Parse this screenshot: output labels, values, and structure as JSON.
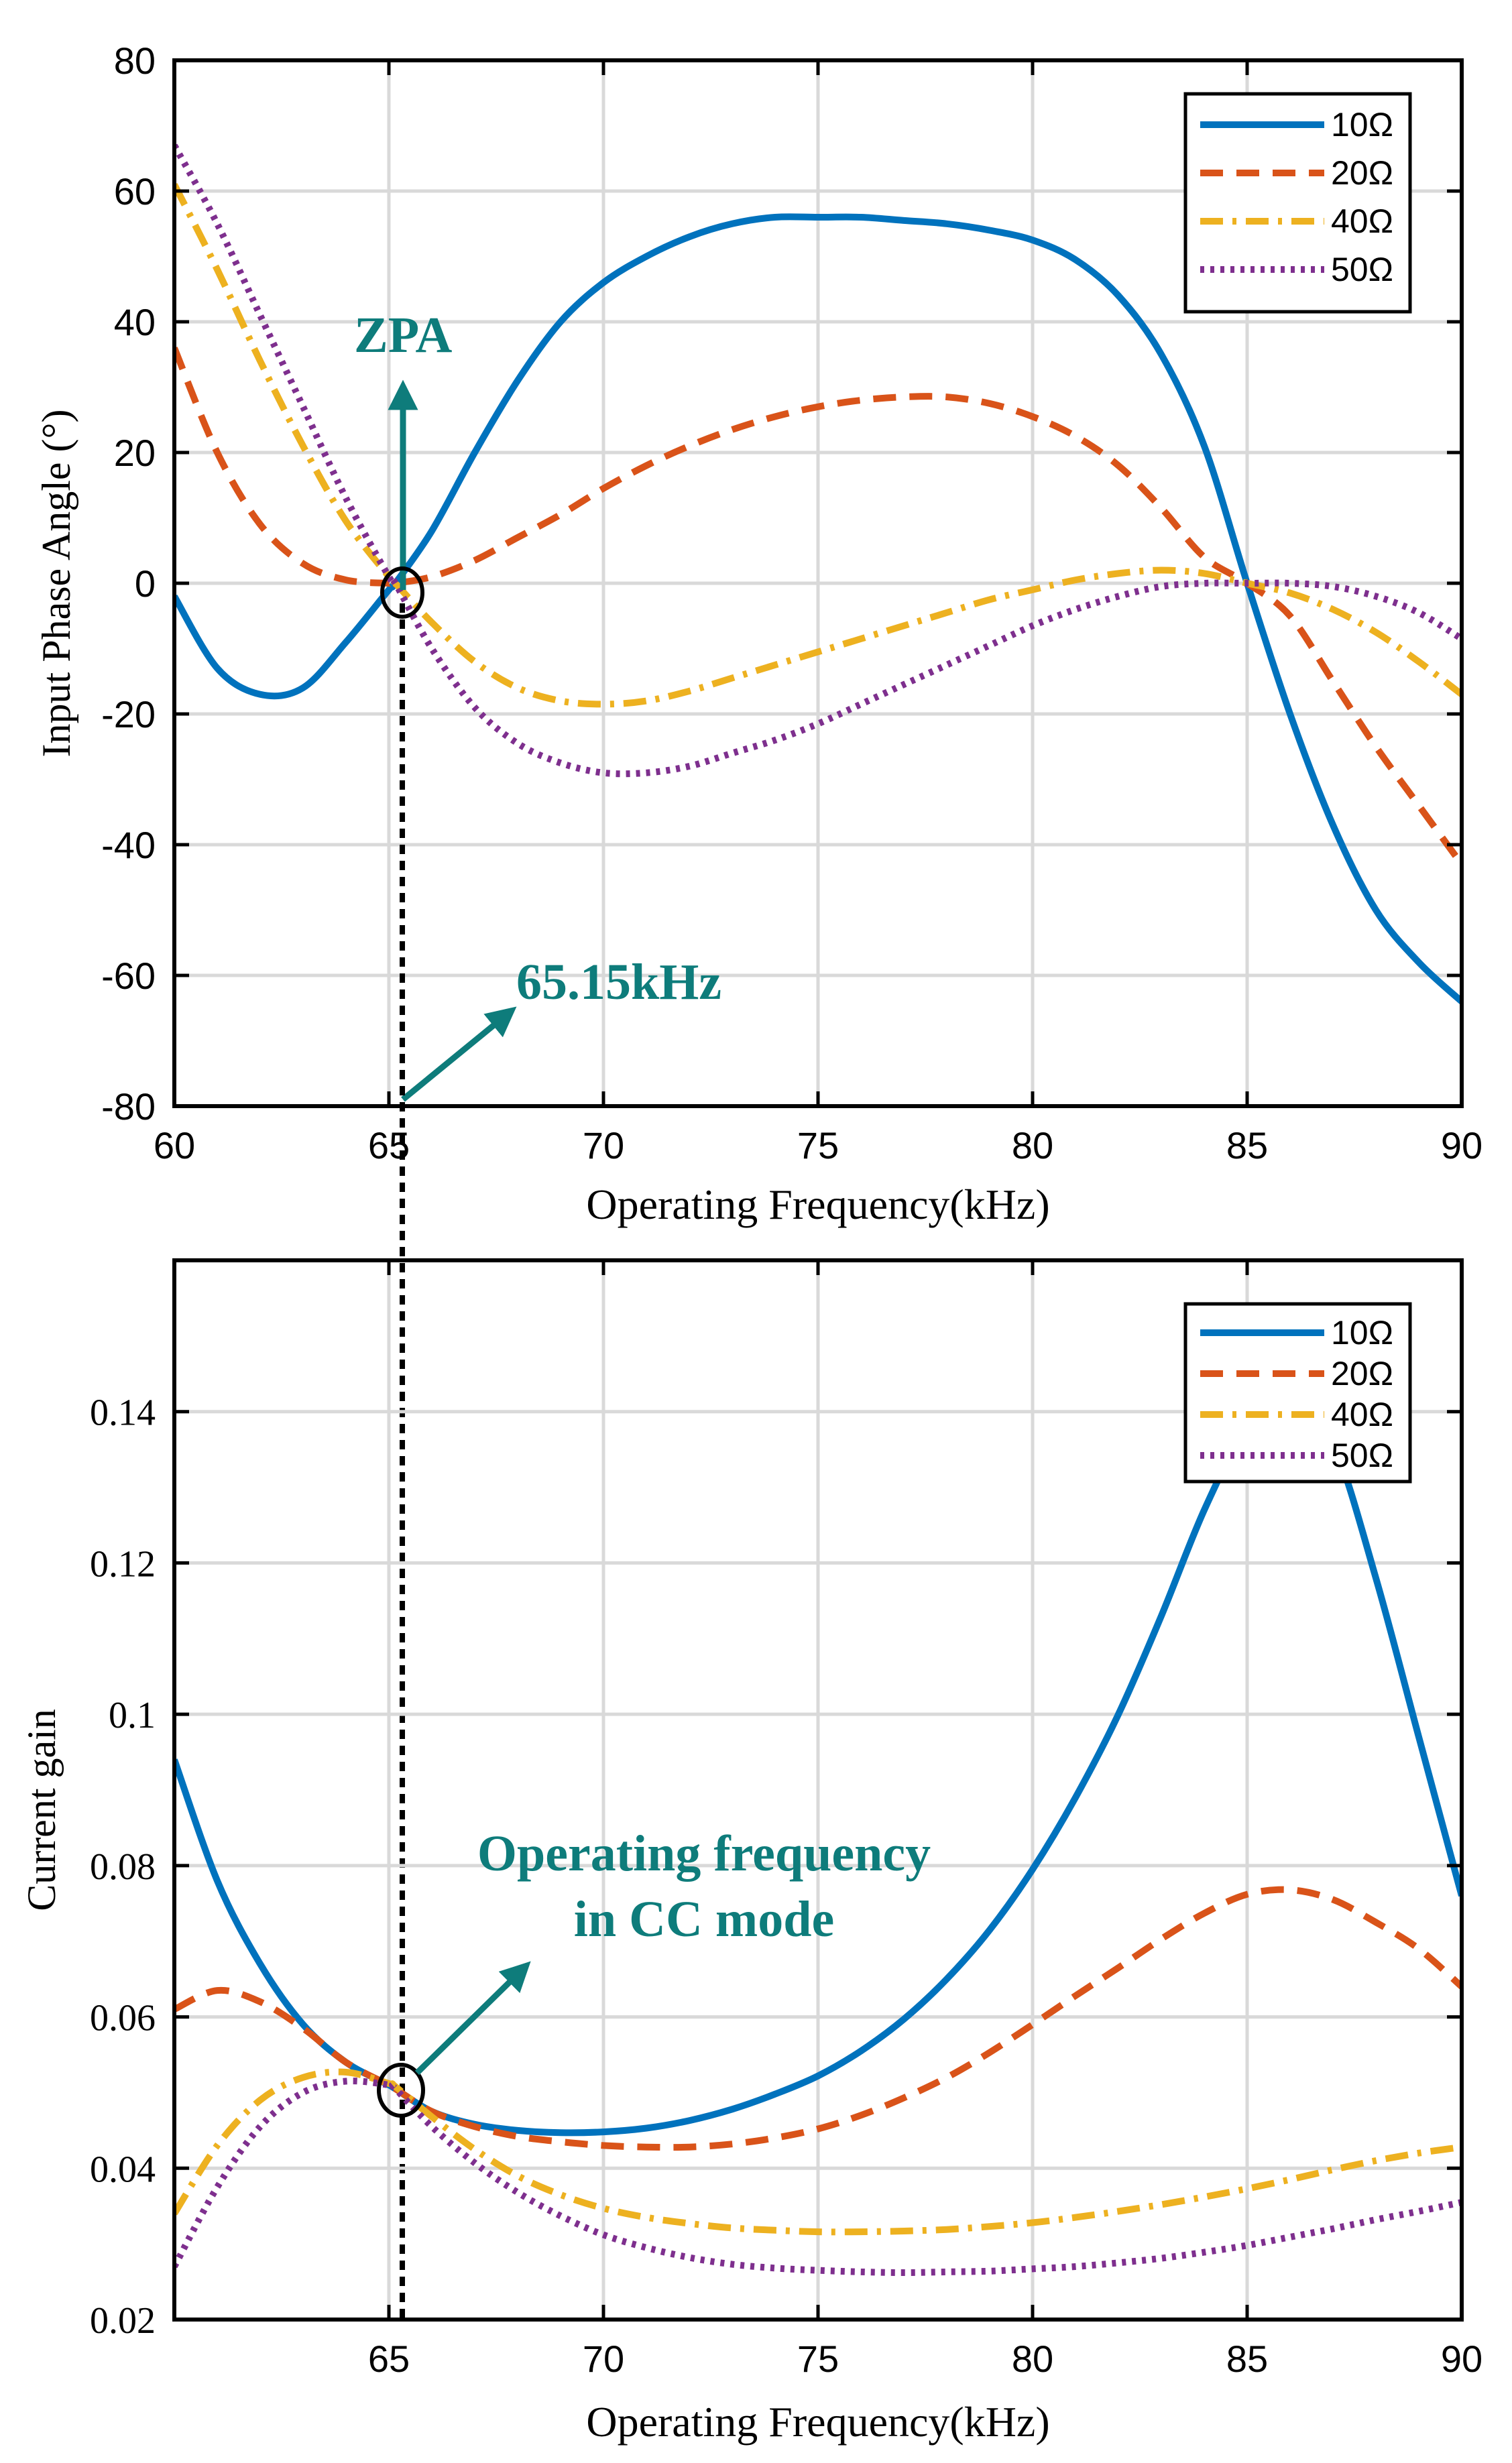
{
  "colors": {
    "series": [
      "#0072BD",
      "#D95319",
      "#EDB120",
      "#7E2F8E"
    ],
    "annotation": "#0E7C7B",
    "grid": "#d9d9d9",
    "axis": "#000000"
  },
  "chart_data": [
    {
      "type": "line",
      "xlabel": "Operating Frequency(kHz)",
      "ylabel": "Input Phase Angle (°)",
      "xlim": [
        60,
        90
      ],
      "ylim": [
        -80,
        80
      ],
      "xticks": [
        60,
        65,
        70,
        75,
        80,
        85,
        90
      ],
      "yticks": [
        -80,
        -60,
        -40,
        -20,
        0,
        20,
        40,
        60,
        80
      ],
      "grid": true,
      "legend_position": "top-right",
      "series": [
        {
          "name": "10Ω",
          "style": "solid",
          "x": [
            60,
            61,
            62,
            63,
            64,
            65,
            65.15,
            66,
            67,
            68,
            69,
            70,
            71,
            72,
            73,
            74,
            75,
            76,
            77,
            78,
            79,
            80,
            81,
            82,
            83,
            84,
            85,
            86,
            87,
            88,
            89,
            90
          ],
          "y": [
            -2,
            -13,
            -17,
            -16,
            -9,
            -1,
            0,
            8,
            20,
            31,
            40,
            46,
            50,
            53,
            55,
            56,
            56,
            56,
            55.5,
            55,
            54,
            52.5,
            49.5,
            44,
            35,
            21,
            0,
            -20,
            -37,
            -50,
            -58,
            -64
          ]
        },
        {
          "name": "20Ω",
          "style": "dashed",
          "x": [
            60,
            61,
            62,
            63,
            64,
            65,
            65.15,
            66,
            67,
            68,
            69,
            70,
            71,
            72,
            73,
            74,
            75,
            76,
            77,
            78,
            79,
            80,
            81,
            82,
            83,
            84,
            85,
            86,
            87,
            88,
            89,
            90
          ],
          "y": [
            36,
            20,
            9,
            3,
            0.5,
            0,
            0,
            1,
            3.5,
            7,
            10.5,
            14.5,
            18,
            21,
            23.5,
            25.5,
            27,
            28,
            28.5,
            28.5,
            27.5,
            25.5,
            22.5,
            18,
            11.5,
            4,
            0,
            -5,
            -15,
            -25,
            -34,
            -43
          ]
        },
        {
          "name": "40Ω",
          "style": "dashdot",
          "x": [
            60,
            61,
            62,
            63,
            64,
            65,
            65.15,
            66,
            67,
            68,
            69,
            70,
            71,
            72,
            73,
            74,
            75,
            76,
            77,
            78,
            79,
            80,
            81,
            82,
            83,
            84,
            85,
            86,
            87,
            88,
            89,
            90
          ],
          "y": [
            61,
            48,
            34,
            21,
            9.5,
            1,
            0,
            -6,
            -12,
            -16,
            -18,
            -18.5,
            -18,
            -16.5,
            -14.5,
            -12.5,
            -10.5,
            -8.5,
            -6.5,
            -4.5,
            -2.5,
            -1,
            0.5,
            1.5,
            2,
            1.5,
            0,
            -1.5,
            -4,
            -7.5,
            -12,
            -17
          ]
        },
        {
          "name": "50Ω",
          "style": "dotted",
          "x": [
            60,
            61,
            62,
            63,
            64,
            65,
            65.15,
            66,
            67,
            68,
            69,
            70,
            71,
            72,
            73,
            74,
            75,
            76,
            77,
            78,
            79,
            80,
            81,
            82,
            83,
            84,
            85,
            86,
            87,
            88,
            89,
            90
          ],
          "y": [
            67,
            55,
            41,
            27,
            13,
            1,
            0,
            -10,
            -19,
            -24.5,
            -27.5,
            -29,
            -29,
            -28,
            -26,
            -24,
            -21.5,
            -18.5,
            -15.5,
            -12.5,
            -9.5,
            -6.5,
            -4,
            -2,
            -0.5,
            0,
            0,
            0,
            -0.5,
            -2,
            -4.5,
            -8.5
          ]
        }
      ],
      "annotations": [
        {
          "text": "ZPA"
        },
        {
          "text": "65.15kHz"
        }
      ]
    },
    {
      "type": "line",
      "xlabel": "Operating Frequency(kHz)",
      "ylabel": "Current gain",
      "xlim": [
        60,
        90
      ],
      "ylim": [
        0.02,
        0.16
      ],
      "xticks": [
        65,
        70,
        75,
        80,
        85,
        90
      ],
      "yticks": [
        0.02,
        0.04,
        0.06,
        0.08,
        0.1,
        0.12,
        0.14
      ],
      "ytick_labels": [
        "0.02",
        "0.04",
        "0.06",
        "0.08",
        "0.1",
        "0.12",
        "0.14"
      ],
      "grid": true,
      "legend_position": "top-right",
      "series": [
        {
          "name": "10Ω",
          "style": "solid",
          "x": [
            60,
            61,
            62,
            63,
            64,
            65,
            65.15,
            66,
            67,
            68,
            69,
            70,
            71,
            72,
            73,
            74,
            75,
            76,
            77,
            78,
            79,
            80,
            81,
            82,
            83,
            84,
            85,
            86,
            87,
            88,
            89,
            90
          ],
          "y": [
            0.094,
            0.078,
            0.067,
            0.059,
            0.054,
            0.051,
            0.0505,
            0.0475,
            0.0458,
            0.045,
            0.0447,
            0.0448,
            0.0453,
            0.0463,
            0.0478,
            0.0498,
            0.0522,
            0.0555,
            0.0597,
            0.065,
            0.0715,
            0.0795,
            0.089,
            0.1,
            0.113,
            0.127,
            0.138,
            0.144,
            0.136,
            0.118,
            0.097,
            0.076
          ]
        },
        {
          "name": "20Ω",
          "style": "dashed",
          "x": [
            60,
            61,
            62,
            63,
            64,
            65,
            65.15,
            66,
            67,
            68,
            69,
            70,
            71,
            72,
            73,
            74,
            75,
            76,
            77,
            78,
            79,
            80,
            81,
            82,
            83,
            84,
            85,
            86,
            87,
            88,
            89,
            90
          ],
          "y": [
            0.061,
            0.0635,
            0.062,
            0.0585,
            0.054,
            0.051,
            0.0505,
            0.0475,
            0.0455,
            0.0442,
            0.0435,
            0.043,
            0.0428,
            0.0428,
            0.0432,
            0.044,
            0.0452,
            0.047,
            0.0493,
            0.052,
            0.0553,
            0.059,
            0.0628,
            0.0665,
            0.0703,
            0.0737,
            0.0762,
            0.0768,
            0.0755,
            0.0725,
            0.069,
            0.064
          ]
        },
        {
          "name": "40Ω",
          "style": "dashdot",
          "x": [
            60,
            61,
            62,
            63,
            64,
            65,
            65.15,
            66,
            67,
            68,
            69,
            70,
            71,
            72,
            73,
            74,
            75,
            76,
            77,
            78,
            79,
            80,
            81,
            82,
            83,
            84,
            85,
            86,
            87,
            88,
            89,
            90
          ],
          "y": [
            0.034,
            0.043,
            0.049,
            0.052,
            0.0527,
            0.0512,
            0.0508,
            0.0468,
            0.0425,
            0.039,
            0.0365,
            0.0347,
            0.0335,
            0.0327,
            0.0321,
            0.0318,
            0.0316,
            0.0316,
            0.0317,
            0.0319,
            0.0323,
            0.0328,
            0.0335,
            0.0343,
            0.0352,
            0.0362,
            0.0373,
            0.0385,
            0.0398,
            0.041,
            0.042,
            0.0428
          ]
        },
        {
          "name": "50Ω",
          "style": "dotted",
          "x": [
            60,
            61,
            62,
            63,
            64,
            65,
            65.15,
            66,
            67,
            68,
            69,
            70,
            71,
            72,
            73,
            74,
            75,
            76,
            77,
            78,
            79,
            80,
            81,
            82,
            83,
            84,
            85,
            86,
            87,
            88,
            89,
            90
          ],
          "y": [
            0.027,
            0.0375,
            0.0455,
            0.05,
            0.0515,
            0.051,
            0.0505,
            0.0455,
            0.0407,
            0.0368,
            0.0337,
            0.0312,
            0.0295,
            0.0282,
            0.0273,
            0.0268,
            0.0265,
            0.0263,
            0.0262,
            0.0263,
            0.0264,
            0.0267,
            0.027,
            0.0275,
            0.0281,
            0.0289,
            0.0298,
            0.0309,
            0.032,
            0.0332,
            0.0343,
            0.0355
          ]
        }
      ],
      "annotations": [
        {
          "text": "Operating frequency"
        },
        {
          "text": "in CC mode"
        }
      ]
    }
  ]
}
